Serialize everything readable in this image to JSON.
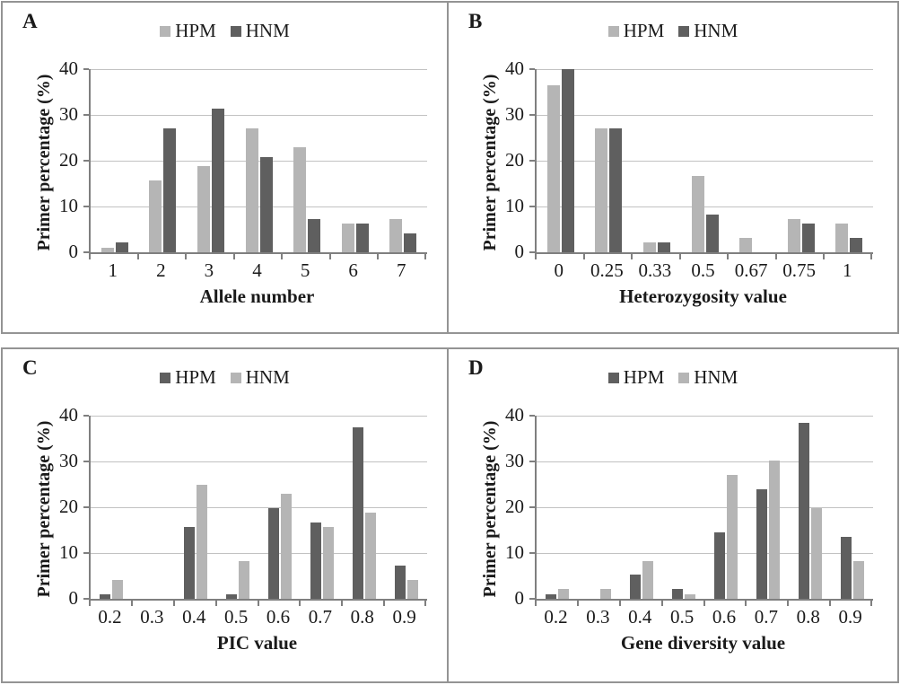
{
  "figure_title": "Four-panel bar chart figure comparing HPM and HNM primer percentages",
  "colors": {
    "series_light": "#b5b5b5",
    "series_dark": "#5f5f5f",
    "gridline": "#c2c2c2",
    "axis": "#7f7f7f",
    "panel_border": "#949494",
    "text": "#1a1a1a",
    "background": "#ffffff"
  },
  "chart_data": [
    {
      "panel": "A",
      "type": "bar",
      "xlabel": "Allele number",
      "ylabel": "Primer percentage (%)",
      "ylim": [
        0,
        40
      ],
      "yticks": [
        "0",
        "10",
        "20",
        "30",
        "40"
      ],
      "grid": true,
      "legend_position": "top-center",
      "categories": [
        "1",
        "2",
        "3",
        "4",
        "5",
        "6",
        "7"
      ],
      "series": [
        {
          "name": "HPM",
          "color": "#b5b5b5",
          "values": [
            1.0,
            15.6,
            18.8,
            27.1,
            22.9,
            6.3,
            7.3
          ]
        },
        {
          "name": "HNM",
          "color": "#5f5f5f",
          "values": [
            2.1,
            27.1,
            31.3,
            20.8,
            7.3,
            6.3,
            4.2
          ]
        }
      ]
    },
    {
      "panel": "B",
      "type": "bar",
      "xlabel": "Heterozygosity value",
      "ylabel": "Primer percentage (%)",
      "ylim": [
        0,
        40
      ],
      "yticks": [
        "0",
        "10",
        "20",
        "30",
        "40"
      ],
      "grid": true,
      "legend_position": "top-center",
      "categories": [
        "0",
        "0.25",
        "0.33",
        "0.5",
        "0.67",
        "0.75",
        "1"
      ],
      "series": [
        {
          "name": "HPM",
          "color": "#b5b5b5",
          "values": [
            36.5,
            27.1,
            2.1,
            16.7,
            3.1,
            7.3,
            6.3
          ]
        },
        {
          "name": "HNM",
          "color": "#5f5f5f",
          "values": [
            40.0,
            27.1,
            2.1,
            8.3,
            0,
            6.3,
            3.1
          ]
        }
      ]
    },
    {
      "panel": "C",
      "type": "bar",
      "xlabel": "PIC value",
      "ylabel": "Primer percentage (%)",
      "ylim": [
        0,
        40
      ],
      "yticks": [
        "0",
        "10",
        "20",
        "30",
        "40"
      ],
      "grid": true,
      "legend_position": "top-center",
      "categories": [
        "0.2",
        "0.3",
        "0.4",
        "0.5",
        "0.6",
        "0.7",
        "0.8",
        "0.9"
      ],
      "series": [
        {
          "name": "HPM",
          "color": "#5f5f5f",
          "values": [
            1.0,
            0,
            15.6,
            1.0,
            19.8,
            16.7,
            37.5,
            7.3
          ]
        },
        {
          "name": "HNM",
          "color": "#b5b5b5",
          "values": [
            4.2,
            0,
            25.0,
            8.3,
            22.9,
            15.6,
            18.8,
            4.2
          ]
        }
      ]
    },
    {
      "panel": "D",
      "type": "bar",
      "xlabel": "Gene diversity value",
      "ylabel": "Primer percentage (%)",
      "ylim": [
        0,
        40
      ],
      "yticks": [
        "0",
        "10",
        "20",
        "30",
        "40"
      ],
      "grid": true,
      "legend_position": "top-center",
      "categories": [
        "0.2",
        "0.3",
        "0.4",
        "0.5",
        "0.6",
        "0.7",
        "0.8",
        "0.9"
      ],
      "series": [
        {
          "name": "HPM",
          "color": "#5f5f5f",
          "values": [
            1.0,
            0,
            5.2,
            2.1,
            14.6,
            24.0,
            38.5,
            13.5
          ]
        },
        {
          "name": "HNM",
          "color": "#b5b5b5",
          "values": [
            2.1,
            2.1,
            8.3,
            1.0,
            27.1,
            30.2,
            19.8,
            8.3
          ]
        }
      ]
    }
  ]
}
